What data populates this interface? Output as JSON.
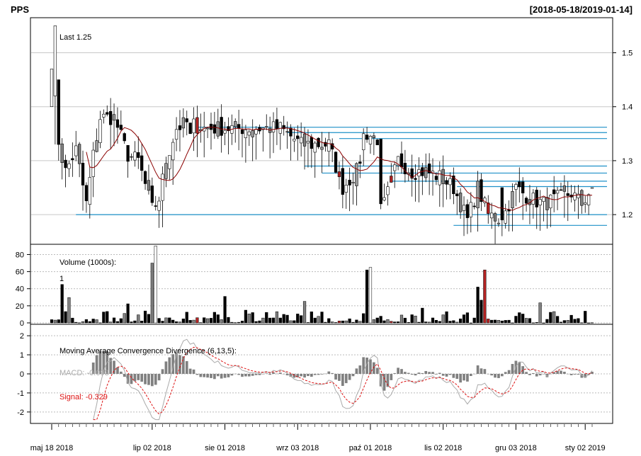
{
  "title": "PPS",
  "date_range": "[2018-05-18/2019-01-14]",
  "chart_data": [
    {
      "type": "candlestick",
      "annotation": "Last 1.25",
      "ylim": [
        1.145,
        1.565
      ],
      "y_ticks": [
        "1.5",
        "1.4",
        "1.3",
        "1.2"
      ],
      "y_tick_values": [
        1.5,
        1.4,
        1.3,
        1.2
      ],
      "x_tick_labels": [
        "maj 18 2018",
        "lip 02 2018",
        "sie 01 2018",
        "wrz 03 2018",
        "paź 01 2018",
        "lis 02 2018",
        "gru 03 2018",
        "sty 02 2019"
      ],
      "x_tick_index": [
        0,
        29,
        50,
        71,
        92,
        113,
        134,
        154
      ],
      "n_days": 157,
      "colors": {
        "up": "#ffffff",
        "down": "#000000",
        "up_light": "#9a9a9a",
        "down_light": "#808080",
        "special": "#b22222",
        "sma": "#8b0000",
        "level": "#1e90c8"
      },
      "sample_candles": [
        {
          "i": 0,
          "open": 1.4,
          "high": 1.47,
          "low": 1.4,
          "close": 1.47
        },
        {
          "i": 1,
          "open": 1.42,
          "high": 1.55,
          "low": 1.33,
          "close": 1.55
        },
        {
          "i": 2,
          "open": 1.45,
          "high": 1.45,
          "low": 1.3,
          "close": 1.33
        },
        {
          "i": 40,
          "open": 1.37,
          "high": 1.37,
          "low": 1.35,
          "close": 1.35
        },
        {
          "i": 90,
          "open": 1.32,
          "high": 1.36,
          "low": 1.29,
          "close": 1.35
        },
        {
          "i": 95,
          "open": 1.34,
          "high": 1.34,
          "low": 1.21,
          "close": 1.22
        },
        {
          "i": 130,
          "open": 1.25,
          "high": 1.25,
          "low": 1.16,
          "close": 1.19
        },
        {
          "i": 156,
          "open": 1.25,
          "high": 1.25,
          "low": 1.25,
          "close": 1.25
        }
      ],
      "levels": [
        {
          "y": 1.362,
          "from": 42
        },
        {
          "y": 1.352,
          "from": 68
        },
        {
          "y": 1.341,
          "from": 83
        },
        {
          "y": 1.29,
          "from": 73
        },
        {
          "y": 1.277,
          "from": 78
        },
        {
          "y": 1.262,
          "from": 98
        },
        {
          "y": 1.252,
          "from": 117
        },
        {
          "y": 1.2,
          "from": 7
        },
        {
          "y": 1.18,
          "from": 116
        }
      ]
    },
    {
      "type": "bar",
      "label": "Volume (1000s):",
      "annotation": "1",
      "ylim": [
        0,
        92
      ],
      "y_ticks": [
        "80",
        "60",
        "40",
        "20",
        "0"
      ],
      "y_tick_values": [
        80,
        60,
        40,
        20,
        0
      ],
      "peaks": [
        {
          "i": 3,
          "value": 45
        },
        {
          "i": 30,
          "value": 90
        },
        {
          "i": 29,
          "value": 70
        },
        {
          "i": 92,
          "value": 65
        },
        {
          "i": 91,
          "value": 62
        },
        {
          "i": 125,
          "value": 62
        },
        {
          "i": 123,
          "value": 42
        },
        {
          "i": 50,
          "value": 31
        }
      ]
    },
    {
      "type": "line",
      "label": "Moving Average Convergence Divergence (6,13,5):",
      "series": [
        {
          "name": "MACD: -0.093",
          "color": "#aaaaaa"
        },
        {
          "name": "Signal: -0.329",
          "color": "#dd1111"
        }
      ],
      "ylim": [
        -2.6,
        2.6
      ],
      "y_ticks": [
        "2",
        "1",
        "0",
        "-1",
        "-2"
      ],
      "y_tick_values": [
        2,
        1,
        0,
        -1,
        -2
      ]
    }
  ]
}
